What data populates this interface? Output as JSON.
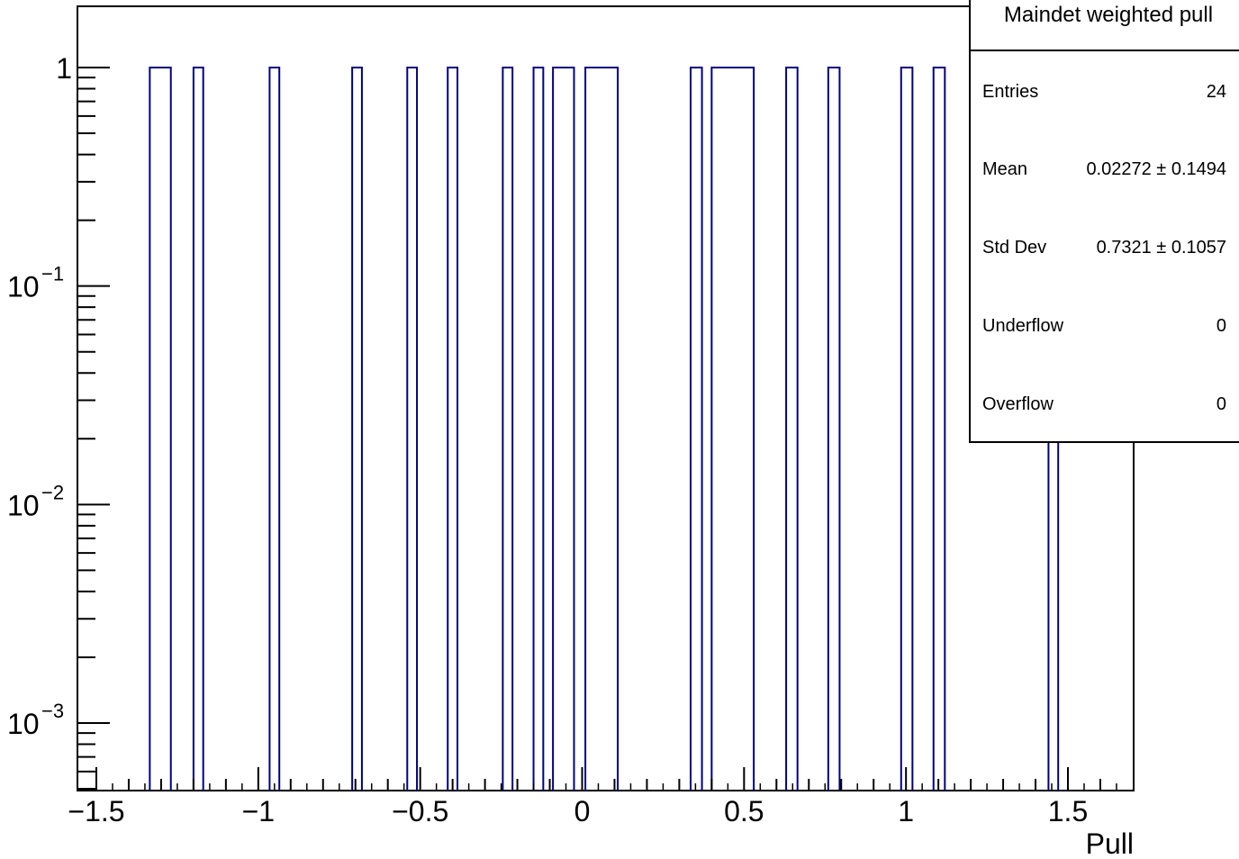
{
  "chart_data": {
    "type": "histogram",
    "title": "Maindet weighted pull",
    "xlabel": "Pull",
    "ylabel": "",
    "xlim": [
      -1.5,
      1.7
    ],
    "ylim": [
      0.0005,
      1.8
    ],
    "yscale": "log",
    "bin_width": 0.033,
    "bins_with_count_1": [
      [
        -1.335,
        -1.27
      ],
      [
        -1.2,
        -1.17
      ],
      [
        -0.965,
        -0.935
      ],
      [
        -0.71,
        -0.68
      ],
      [
        -0.54,
        -0.51
      ],
      [
        -0.415,
        -0.385
      ],
      [
        -0.245,
        -0.215
      ],
      [
        -0.15,
        -0.12
      ],
      [
        -0.09,
        -0.025
      ],
      [
        0.01,
        0.11
      ],
      [
        0.335,
        0.37
      ],
      [
        0.4,
        0.53
      ],
      [
        0.63,
        0.665
      ],
      [
        0.76,
        0.795
      ],
      [
        0.985,
        1.02
      ],
      [
        1.085,
        1.12
      ],
      [
        1.44,
        1.47
      ]
    ],
    "x_tick_labels": [
      "−1.5",
      "−1",
      "−0.5",
      "0",
      "0.5",
      "1",
      "1.5"
    ],
    "x_tick_values": [
      -1.5,
      -1,
      -0.5,
      0,
      0.5,
      1,
      1.5
    ],
    "y_tick_labels": [
      {
        "base": "1",
        "exp": ""
      },
      {
        "base": "10",
        "exp": "−1"
      },
      {
        "base": "10",
        "exp": "−2"
      },
      {
        "base": "10",
        "exp": "−3"
      }
    ],
    "y_tick_values": [
      1,
      0.1,
      0.01,
      0.001
    ],
    "line_color": "#000080",
    "grid": false,
    "legend": "none"
  },
  "stats": {
    "title": "Maindet weighted pull",
    "rows": [
      {
        "label": "Entries",
        "value": "24"
      },
      {
        "label": "Mean",
        "value": "0.02272 ± 0.1494"
      },
      {
        "label": "Std Dev",
        "value": "0.7321 ± 0.1057"
      },
      {
        "label": "Underflow",
        "value": "0"
      },
      {
        "label": "Overflow",
        "value": "0"
      }
    ],
    "placement": "top-right"
  }
}
